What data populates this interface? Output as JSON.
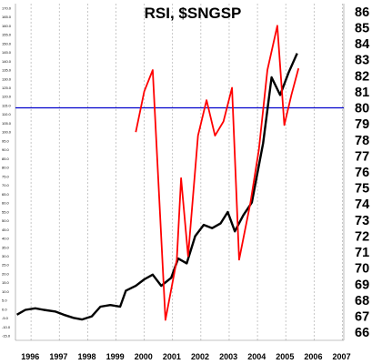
{
  "chart_data": {
    "type": "line",
    "title": "RSI, $SNGSP",
    "x_ticks": [
      "1996",
      "1997",
      "1998",
      "1999",
      "2000",
      "2001",
      "2002",
      "2003",
      "2004",
      "2005",
      "2006",
      "2007"
    ],
    "y_right_ticks": [
      "66",
      "67",
      "68",
      "69",
      "70",
      "71",
      "72",
      "73",
      "74",
      "75",
      "76",
      "77",
      "78",
      "79",
      "80",
      "81",
      "82",
      "83",
      "84",
      "85",
      "86"
    ],
    "y_right_range": [
      65.5,
      86.5
    ],
    "y_left_range": [
      -17.5,
      172.5
    ],
    "y_left_ticks": [
      "-15.0",
      "-10.0",
      "-5.0",
      "0.0",
      "5.0",
      "10.0",
      "15.0",
      "20.0",
      "25.0",
      "30.0",
      "35.0",
      "40.0",
      "45.0",
      "50.0",
      "55.0",
      "60.0",
      "65.0",
      "70.0",
      "75.0",
      "80.0",
      "85.0",
      "90.0",
      "95.0",
      "100.0",
      "105.0",
      "110.0",
      "115.0",
      "120.0",
      "125.0",
      "130.0",
      "135.0",
      "140.0",
      "145.0",
      "150.0",
      "155.0",
      "160.0",
      "165.0",
      "170.0"
    ],
    "x_range": [
      1995.8,
      2007.4
    ],
    "grid": {
      "vertical": true,
      "horizontal": false
    },
    "series": [
      {
        "color": "#000000",
        "axis": "right",
        "points": [
          [
            1995.85,
            67.1
          ],
          [
            1996.15,
            67.4
          ],
          [
            1996.5,
            67.5
          ],
          [
            1996.8,
            67.4
          ],
          [
            1997.2,
            67.3
          ],
          [
            1997.5,
            67.1
          ],
          [
            1997.85,
            66.9
          ],
          [
            1998.15,
            66.8
          ],
          [
            1998.5,
            67.0
          ],
          [
            1998.8,
            67.6
          ],
          [
            1999.15,
            67.7
          ],
          [
            1999.5,
            67.6
          ],
          [
            1999.7,
            68.6
          ],
          [
            2000.05,
            68.9
          ],
          [
            2000.35,
            69.3
          ],
          [
            2000.65,
            69.6
          ],
          [
            2000.95,
            68.9
          ],
          [
            2001.3,
            69.4
          ],
          [
            2001.55,
            70.6
          ],
          [
            2001.85,
            70.3
          ],
          [
            2002.15,
            72.0
          ],
          [
            2002.45,
            72.7
          ],
          [
            2002.75,
            72.5
          ],
          [
            2003.05,
            72.8
          ],
          [
            2003.3,
            73.5
          ],
          [
            2003.55,
            72.3
          ],
          [
            2003.85,
            73.3
          ],
          [
            2004.15,
            74.1
          ],
          [
            2004.55,
            77.8
          ],
          [
            2004.85,
            81.9
          ],
          [
            2005.15,
            80.8
          ],
          [
            2005.45,
            82.2
          ],
          [
            2005.75,
            83.4
          ]
        ]
      },
      {
        "color": "#ff0000",
        "axis": "left",
        "points": [
          [
            2000.05,
            100.0
          ],
          [
            2000.35,
            123.0
          ],
          [
            2000.65,
            135.0
          ],
          [
            2001.1,
            -6.0
          ],
          [
            2001.5,
            28.0
          ],
          [
            2001.65,
            74.0
          ],
          [
            2001.9,
            30.0
          ],
          [
            2002.25,
            98.0
          ],
          [
            2002.55,
            118.0
          ],
          [
            2002.85,
            98.0
          ],
          [
            2003.15,
            106.0
          ],
          [
            2003.45,
            125.0
          ],
          [
            2003.7,
            28.0
          ],
          [
            2004.1,
            60.0
          ],
          [
            2004.4,
            90.0
          ],
          [
            2004.7,
            135.0
          ],
          [
            2005.05,
            160.0
          ],
          [
            2005.3,
            104.0
          ],
          [
            2005.55,
            121.0
          ],
          [
            2005.8,
            136.0
          ]
        ]
      }
    ],
    "hlines": [
      {
        "axis": "right",
        "value": 80,
        "color": "#0000cc"
      }
    ]
  }
}
